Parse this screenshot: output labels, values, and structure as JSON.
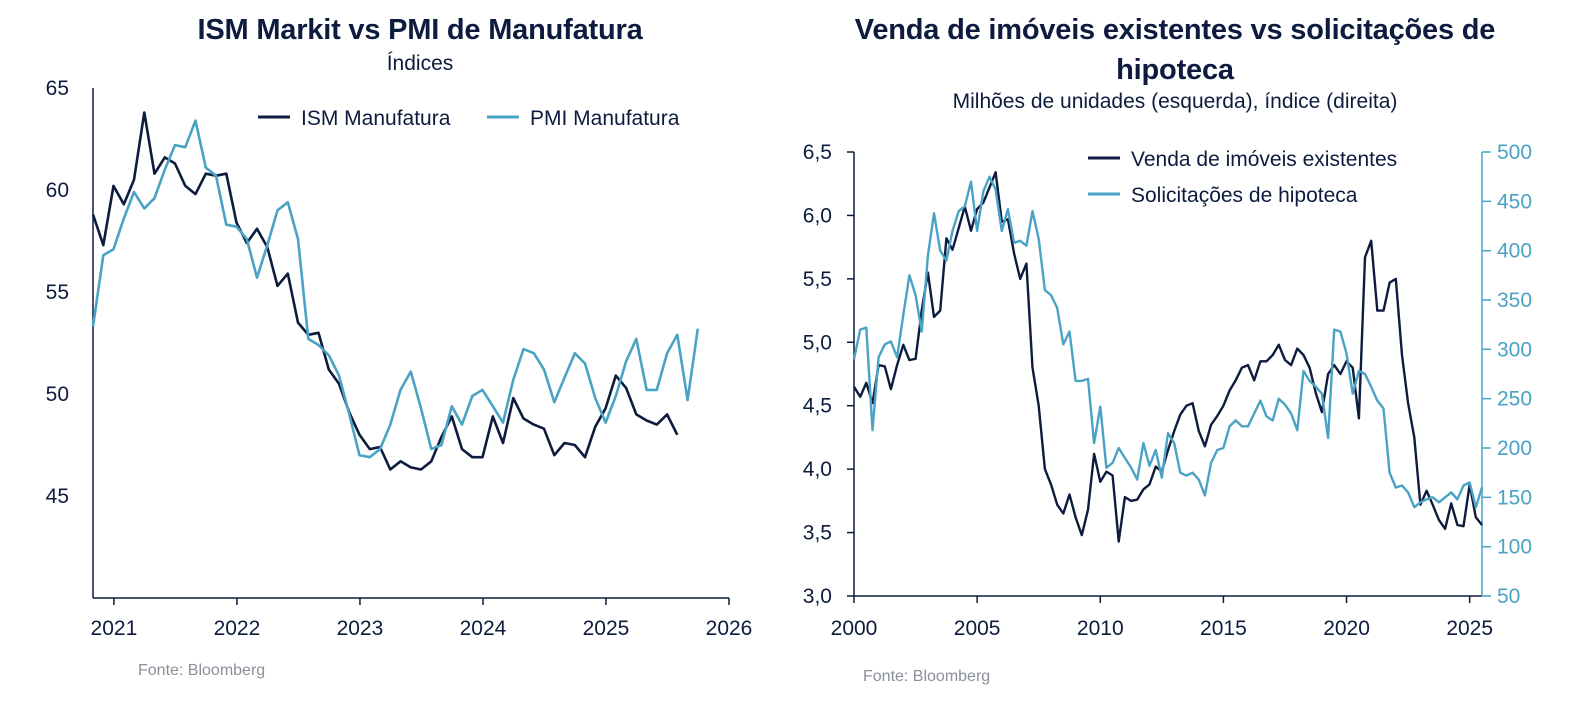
{
  "colors": {
    "dark": "#0d1b3e",
    "light": "#4aa3c4",
    "source": "#8a8f99"
  },
  "chart_data": [
    {
      "type": "line",
      "title": "ISM Markit vs PMI de Manufatura",
      "subtitle": "Índices",
      "source": "Fonte: Bloomberg",
      "xlim": [
        2020.83,
        2026.0
      ],
      "ylim": [
        40,
        65
      ],
      "xticks": [
        2021,
        2022,
        2023,
        2024,
        2025,
        2026
      ],
      "xtick_labels": [
        "2021",
        "2022",
        "2023",
        "2024",
        "2025",
        "2026"
      ],
      "yticks": [
        45,
        50,
        55,
        60,
        65
      ],
      "ytick_labels": [
        "45",
        "50",
        "55",
        "60",
        "65"
      ],
      "legend_position": "top",
      "series": [
        {
          "name": "ISM Manufatura",
          "color": "#0d1b3e",
          "x_start": 2020.83,
          "x_step": 0.08333,
          "values": [
            58.8,
            57.3,
            60.2,
            59.3,
            60.5,
            63.8,
            60.8,
            61.6,
            61.3,
            60.2,
            59.8,
            60.8,
            60.7,
            60.8,
            58.4,
            57.4,
            58.1,
            57.2,
            55.3,
            55.9,
            53.5,
            52.9,
            53.0,
            51.2,
            50.5,
            49.1,
            48.0,
            47.3,
            47.4,
            46.3,
            46.7,
            46.4,
            46.3,
            46.7,
            47.9,
            48.9,
            47.3,
            46.9,
            46.9,
            48.9,
            47.6,
            49.8,
            48.8,
            48.5,
            48.3,
            47.0,
            47.6,
            47.5,
            46.9,
            48.4,
            49.3,
            50.9,
            50.3,
            49.0,
            48.7,
            48.5,
            49.0,
            48.0
          ],
          "n_values": 58
        },
        {
          "name": "PMI Manufatura",
          "color": "#4aa3c4",
          "x_start": 2020.83,
          "x_step": 0.08333,
          "values": [
            53.3,
            56.8,
            57.1,
            58.6,
            59.9,
            59.1,
            59.6,
            61.0,
            62.2,
            62.1,
            63.4,
            61.1,
            60.7,
            58.3,
            58.2,
            57.6,
            55.7,
            57.3,
            59.0,
            59.4,
            57.6,
            52.7,
            52.4,
            51.9,
            50.9,
            49.0,
            47.0,
            46.9,
            47.3,
            48.5,
            50.2,
            51.1,
            49.3,
            47.3,
            47.5,
            49.4,
            48.5,
            49.9,
            50.2,
            49.4,
            48.6,
            50.7,
            52.2,
            52.0,
            51.2,
            49.6,
            50.8,
            52.0,
            51.5,
            49.8,
            48.6,
            49.9,
            51.6,
            52.7,
            50.2,
            50.2,
            52.0,
            52.9,
            49.7,
            53.2
          ],
          "n_values": 60
        }
      ]
    },
    {
      "type": "line",
      "title": "Venda de imóveis existentes vs solicitações de hipoteca",
      "subtitle": "Milhões de unidades (esquerda), índice (direita)",
      "source": "Fonte: Bloomberg",
      "xlim": [
        2000,
        2025.5
      ],
      "ylim_left": [
        3.0,
        6.5
      ],
      "ylim_right": [
        50,
        500
      ],
      "xticks": [
        2000,
        2005,
        2010,
        2015,
        2020,
        2025
      ],
      "xtick_labels": [
        "2000",
        "2005",
        "2010",
        "2015",
        "2020",
        "2025"
      ],
      "yticks_left": [
        3.0,
        3.5,
        4.0,
        4.5,
        5.0,
        5.5,
        6.0,
        6.5
      ],
      "ytick_labels_left": [
        "3,0",
        "3,5",
        "4,0",
        "4,5",
        "5,0",
        "5,5",
        "6,0",
        "6,5"
      ],
      "yticks_right": [
        50,
        100,
        150,
        200,
        250,
        300,
        350,
        400,
        450,
        500
      ],
      "ytick_labels_right": [
        "50",
        "100",
        "150",
        "200",
        "250",
        "300",
        "350",
        "400",
        "450",
        "500"
      ],
      "legend_position": "top-right",
      "series": [
        {
          "name": "Venda de imóveis existentes",
          "color": "#0d1b3e",
          "axis": "left",
          "x": [
            2000.0,
            2000.25,
            2000.5,
            2000.75,
            2001.0,
            2001.25,
            2001.5,
            2001.75,
            2002.0,
            2002.25,
            2002.5,
            2002.75,
            2003.0,
            2003.25,
            2003.5,
            2003.75,
            2004.0,
            2004.25,
            2004.5,
            2004.75,
            2005.0,
            2005.25,
            2005.5,
            2005.75,
            2006.0,
            2006.25,
            2006.5,
            2006.75,
            2007.0,
            2007.25,
            2007.5,
            2007.75,
            2008.0,
            2008.25,
            2008.5,
            2008.75,
            2009.0,
            2009.25,
            2009.5,
            2009.75,
            2010.0,
            2010.25,
            2010.5,
            2010.75,
            2011.0,
            2011.25,
            2011.5,
            2011.75,
            2012.0,
            2012.25,
            2012.5,
            2012.75,
            2013.0,
            2013.25,
            2013.5,
            2013.75,
            2014.0,
            2014.25,
            2014.5,
            2014.75,
            2015.0,
            2015.25,
            2015.5,
            2015.75,
            2016.0,
            2016.25,
            2016.5,
            2016.75,
            2017.0,
            2017.25,
            2017.5,
            2017.75,
            2018.0,
            2018.25,
            2018.5,
            2018.75,
            2019.0,
            2019.25,
            2019.5,
            2019.75,
            2020.0,
            2020.25,
            2020.5,
            2020.75,
            2021.0,
            2021.25,
            2021.5,
            2021.75,
            2022.0,
            2022.25,
            2022.5,
            2022.75,
            2023.0,
            2023.25,
            2023.5,
            2023.75,
            2024.0,
            2024.25,
            2024.5,
            2024.75,
            2025.0,
            2025.25,
            2025.5
          ],
          "values": [
            4.65,
            4.57,
            4.68,
            4.52,
            4.82,
            4.81,
            4.63,
            4.82,
            4.98,
            4.86,
            4.87,
            5.25,
            5.55,
            5.2,
            5.25,
            5.82,
            5.73,
            5.9,
            6.07,
            5.88,
            6.05,
            6.1,
            6.22,
            6.34,
            5.95,
            5.97,
            5.7,
            5.5,
            5.62,
            4.8,
            4.5,
            4.0,
            3.88,
            3.72,
            3.65,
            3.8,
            3.62,
            3.48,
            3.68,
            4.12,
            3.9,
            3.98,
            3.95,
            3.43,
            3.78,
            3.75,
            3.76,
            3.84,
            3.88,
            4.02,
            3.98,
            4.15,
            4.3,
            4.43,
            4.5,
            4.52,
            4.3,
            4.18,
            4.35,
            4.42,
            4.5,
            4.62,
            4.7,
            4.8,
            4.82,
            4.7,
            4.85,
            4.85,
            4.9,
            4.98,
            4.86,
            4.82,
            4.95,
            4.9,
            4.8,
            4.6,
            4.45,
            4.75,
            4.82,
            4.75,
            4.85,
            4.8,
            4.4,
            5.67,
            5.8,
            5.25,
            5.25,
            5.47,
            5.5,
            4.9,
            4.52,
            4.25,
            3.72,
            3.83,
            3.72,
            3.6,
            3.53,
            3.73,
            3.56,
            3.55,
            3.88,
            3.62,
            3.56
          ],
          "n_values": 103
        },
        {
          "name": "Solicitações de hipoteca",
          "color": "#4aa3c4",
          "axis": "right",
          "x": [
            2000.0,
            2000.25,
            2000.5,
            2000.75,
            2001.0,
            2001.25,
            2001.5,
            2001.75,
            2002.0,
            2002.25,
            2002.5,
            2002.75,
            2003.0,
            2003.25,
            2003.5,
            2003.75,
            2004.0,
            2004.25,
            2004.5,
            2004.75,
            2005.0,
            2005.25,
            2005.5,
            2005.75,
            2006.0,
            2006.25,
            2006.5,
            2006.75,
            2007.0,
            2007.25,
            2007.5,
            2007.75,
            2008.0,
            2008.25,
            2008.5,
            2008.75,
            2009.0,
            2009.25,
            2009.5,
            2009.75,
            2010.0,
            2010.25,
            2010.5,
            2010.75,
            2011.0,
            2011.25,
            2011.5,
            2011.75,
            2012.0,
            2012.25,
            2012.5,
            2012.75,
            2013.0,
            2013.25,
            2013.5,
            2013.75,
            2014.0,
            2014.25,
            2014.5,
            2014.75,
            2015.0,
            2015.25,
            2015.5,
            2015.75,
            2016.0,
            2016.25,
            2016.5,
            2016.75,
            2017.0,
            2017.25,
            2017.5,
            2017.75,
            2018.0,
            2018.25,
            2018.5,
            2018.75,
            2019.0,
            2019.25,
            2019.5,
            2019.75,
            2020.0,
            2020.25,
            2020.5,
            2020.75,
            2021.0,
            2021.25,
            2021.5,
            2021.75,
            2022.0,
            2022.25,
            2022.5,
            2022.75,
            2023.0,
            2023.25,
            2023.5,
            2023.75,
            2024.0,
            2024.25,
            2024.5,
            2024.75,
            2025.0,
            2025.25,
            2025.5
          ],
          "values": [
            290,
            320,
            322,
            218,
            292,
            305,
            308,
            292,
            335,
            375,
            355,
            318,
            395,
            438,
            400,
            390,
            420,
            440,
            445,
            470,
            420,
            460,
            475,
            462,
            420,
            442,
            408,
            410,
            405,
            440,
            412,
            360,
            355,
            342,
            305,
            318,
            268,
            268,
            270,
            205,
            242,
            180,
            185,
            200,
            190,
            180,
            168,
            205,
            182,
            198,
            170,
            215,
            205,
            175,
            172,
            175,
            168,
            152,
            185,
            198,
            200,
            222,
            228,
            222,
            222,
            235,
            248,
            232,
            228,
            250,
            244,
            235,
            218,
            278,
            268,
            262,
            255,
            210,
            320,
            318,
            296,
            255,
            278,
            275,
            262,
            248,
            240,
            175,
            160,
            162,
            155,
            140,
            145,
            148,
            150,
            145,
            150,
            155,
            148,
            162,
            165,
            140,
            160
          ],
          "n_values": 103
        }
      ]
    }
  ]
}
